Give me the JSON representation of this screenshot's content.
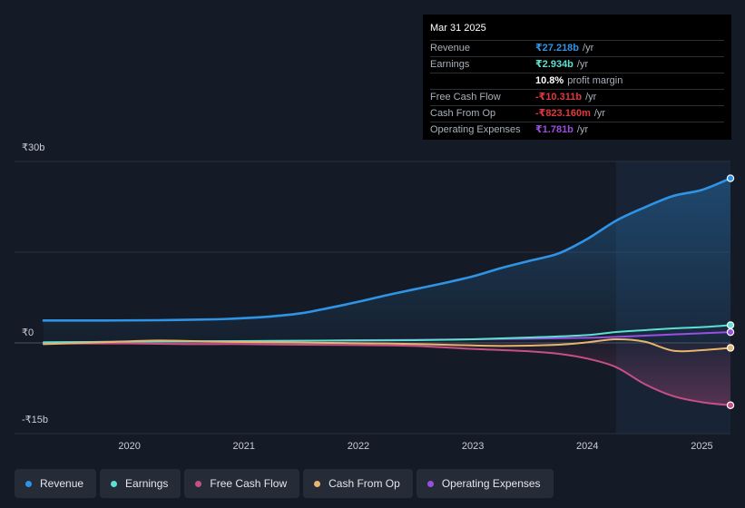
{
  "chart_data": {
    "type": "line",
    "y_axis": {
      "ticks": [
        {
          "value": 30,
          "label": "₹30b"
        },
        {
          "value": 0,
          "label": "₹0"
        },
        {
          "value": -15,
          "label": "-₹15b"
        }
      ],
      "range": [
        -15,
        30
      ]
    },
    "x_axis": {
      "range": [
        2019.25,
        2025.25
      ],
      "ticks": [
        {
          "value": 2020,
          "label": "2020"
        },
        {
          "value": 2021,
          "label": "2021"
        },
        {
          "value": 2022,
          "label": "2022"
        },
        {
          "value": 2023,
          "label": "2023"
        },
        {
          "value": 2024,
          "label": "2024"
        },
        {
          "value": 2025,
          "label": "2025"
        }
      ]
    },
    "highlight_start": 2024.25,
    "grid": "horizontal",
    "legend_position": "bottom",
    "series": [
      {
        "name": "Revenue",
        "color": "#2f94e6",
        "fill": true,
        "x": [
          2019.25,
          2019.75,
          2020.25,
          2020.75,
          2021.0,
          2021.25,
          2021.5,
          2021.75,
          2022.0,
          2022.25,
          2022.5,
          2022.75,
          2023.0,
          2023.25,
          2023.5,
          2023.75,
          2024.0,
          2024.25,
          2024.5,
          2024.75,
          2025.0,
          2025.25
        ],
        "y": [
          3.7,
          3.7,
          3.75,
          3.9,
          4.1,
          4.4,
          4.9,
          5.8,
          6.8,
          7.9,
          8.9,
          9.9,
          11.0,
          12.4,
          13.6,
          14.8,
          17.2,
          20.2,
          22.4,
          24.3,
          25.3,
          27.218
        ]
      },
      {
        "name": "Earnings",
        "color": "#5ce0d2",
        "x": [
          2019.25,
          2020.0,
          2020.5,
          2021.0,
          2021.5,
          2022.0,
          2022.5,
          2023.0,
          2023.5,
          2024.0,
          2024.25,
          2024.5,
          2024.75,
          2025.0,
          2025.25
        ],
        "y": [
          0.1,
          0.2,
          0.25,
          0.3,
          0.35,
          0.4,
          0.45,
          0.6,
          0.9,
          1.3,
          1.8,
          2.1,
          2.4,
          2.6,
          2.934
        ]
      },
      {
        "name": "Free Cash Flow",
        "color": "#c84f86",
        "fill": true,
        "x": [
          2019.25,
          2020.0,
          2020.5,
          2021.0,
          2021.5,
          2022.0,
          2022.5,
          2023.0,
          2023.5,
          2023.75,
          2024.0,
          2024.25,
          2024.5,
          2024.75,
          2025.0,
          2025.25
        ],
        "y": [
          -0.1,
          -0.1,
          -0.2,
          -0.2,
          -0.3,
          -0.35,
          -0.5,
          -1.0,
          -1.4,
          -1.8,
          -2.6,
          -4.0,
          -6.8,
          -8.8,
          -9.8,
          -10.311
        ]
      },
      {
        "name": "Cash From Op",
        "color": "#e9b46b",
        "x": [
          2019.25,
          2019.75,
          2020.25,
          2020.75,
          2021.25,
          2021.75,
          2022.25,
          2022.75,
          2023.25,
          2023.75,
          2024.0,
          2024.25,
          2024.5,
          2024.75,
          2025.0,
          2025.25
        ],
        "y": [
          -0.2,
          0.1,
          0.4,
          0.2,
          0.1,
          0.0,
          -0.1,
          -0.3,
          -0.5,
          -0.3,
          0.1,
          0.6,
          0.2,
          -1.3,
          -1.2,
          -0.823
        ]
      },
      {
        "name": "Operating Expenses",
        "color": "#9a4fe0",
        "x": [
          2019.25,
          2020.0,
          2020.5,
          2021.0,
          2021.5,
          2022.0,
          2022.5,
          2023.0,
          2023.5,
          2024.0,
          2024.25,
          2024.5,
          2024.75,
          2025.0,
          2025.25
        ],
        "y": [
          0.1,
          0.2,
          0.3,
          0.3,
          0.35,
          0.45,
          0.5,
          0.6,
          0.7,
          0.85,
          1.0,
          1.2,
          1.4,
          1.6,
          1.781
        ]
      }
    ]
  },
  "tooltip": {
    "date": "Mar 31 2025",
    "rows": [
      {
        "label": "Revenue",
        "value": "₹27.218b",
        "unit": "/yr",
        "color": "#2f94e6"
      },
      {
        "label": "Earnings",
        "value": "₹2.934b",
        "unit": "/yr",
        "color": "#5ce0d2"
      },
      {
        "label": "",
        "value": "10.8%",
        "unit": "profit margin",
        "color": "#ffffff"
      },
      {
        "label": "Free Cash Flow",
        "value": "-₹10.311b",
        "unit": "/yr",
        "color": "#e0383e"
      },
      {
        "label": "Cash From Op",
        "value": "-₹823.160m",
        "unit": "/yr",
        "color": "#e0383e"
      },
      {
        "label": "Operating Expenses",
        "value": "₹1.781b",
        "unit": "/yr",
        "color": "#9a4fe0"
      }
    ]
  },
  "legend": [
    {
      "label": "Revenue",
      "color": "#2f94e6"
    },
    {
      "label": "Earnings",
      "color": "#5ce0d2"
    },
    {
      "label": "Free Cash Flow",
      "color": "#c84f86"
    },
    {
      "label": "Cash From Op",
      "color": "#e9b46b"
    },
    {
      "label": "Operating Expenses",
      "color": "#9a4fe0"
    }
  ]
}
